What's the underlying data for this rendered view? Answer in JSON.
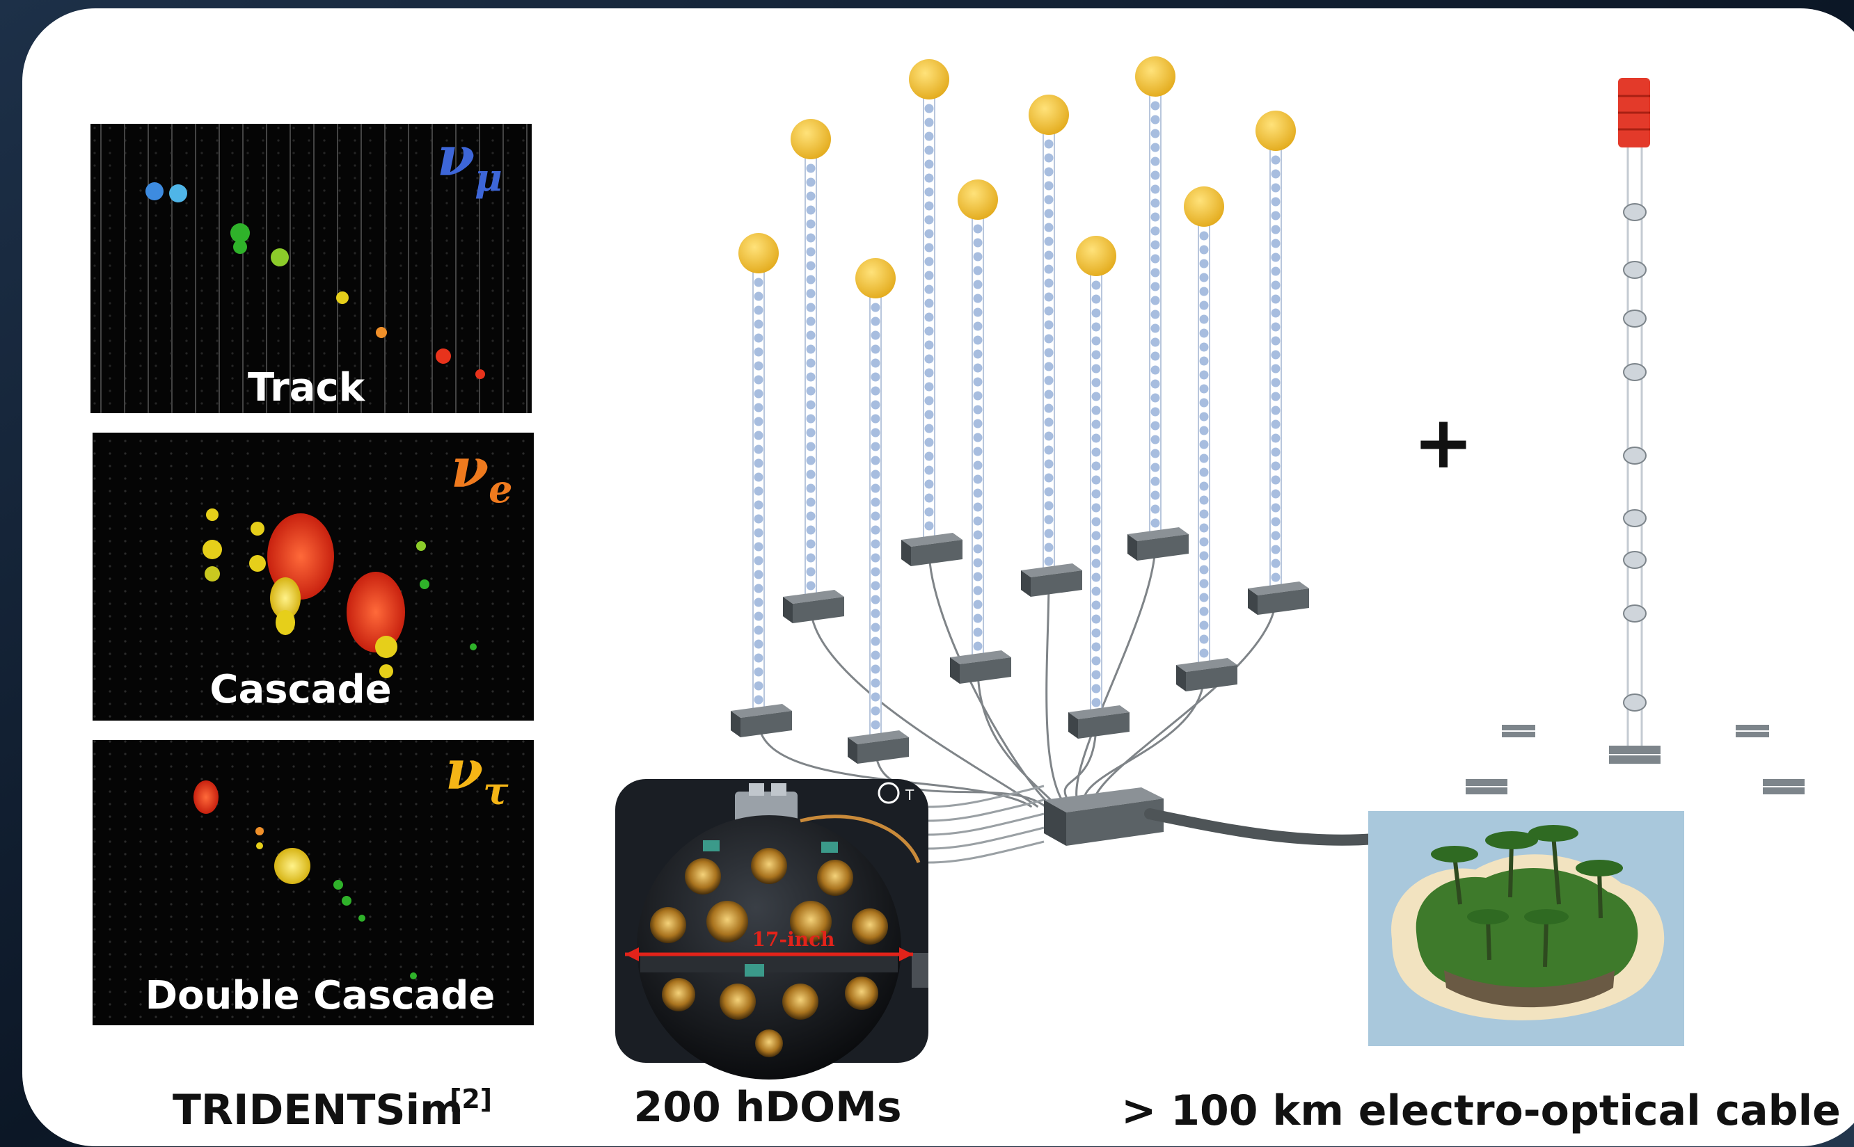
{
  "panels": {
    "track": {
      "label": "Track",
      "nu_symbol": "ν",
      "nu_sub": "μ",
      "nu_color": "#3d66d8"
    },
    "cascade": {
      "label": "Cascade",
      "nu_symbol": "ν",
      "nu_sub": "e",
      "nu_color": "#ef7a1e"
    },
    "double_cascade": {
      "label": "Double Cascade",
      "nu_symbol": "ν",
      "nu_sub": "τ",
      "nu_color": "#f5b516"
    }
  },
  "captions": {
    "sim": "TRIDENTSim",
    "sim_ref": "[2]",
    "hdoms": "200 hDOMs",
    "cable": "> 100 km electro-optical cable"
  },
  "plus_sign": "+",
  "hdom_photo": {
    "diameter_label": "17-inch",
    "corner_mark": "T"
  },
  "colors": {
    "buoy": "#f2c232",
    "string_bead": "#a7bddf",
    "junction_box": "#5b6266",
    "background_card": "#ffffff",
    "hit_red": "#e8331c",
    "hit_yellow": "#e6cf1a",
    "hit_green": "#2fb22a",
    "hit_blue": "#3d8be0",
    "float_red": "#e33a2a",
    "sea": "#a9c8dc",
    "island_green": "#3e7a2b"
  },
  "icons": [
    "buoy-icon",
    "junction-box-icon",
    "hdom-sphere-icon",
    "island-icon",
    "floating-string-icon"
  ]
}
